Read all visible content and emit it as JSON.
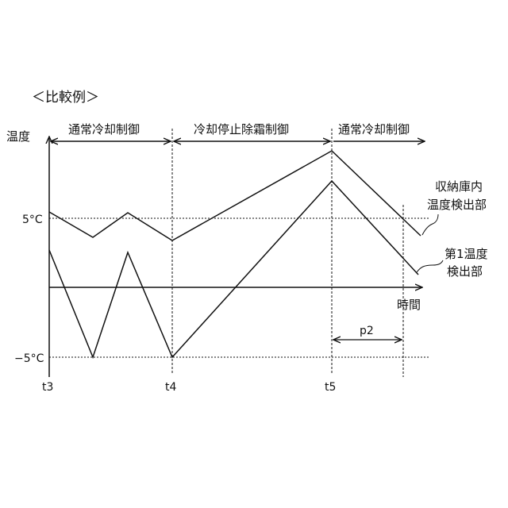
{
  "title": "＜比較例＞",
  "y_axis_label": "温度",
  "x_axis_label": "時間",
  "y_ticks": {
    "upper": "5°C",
    "lower": "−5°C"
  },
  "time_marks": [
    "t3",
    "t4",
    "t5"
  ],
  "phases": [
    {
      "label": "通常冷却制御"
    },
    {
      "label": "冷却停止除霜制御"
    },
    {
      "label": "通常冷却制御"
    }
  ],
  "interval_label": "p2",
  "series": [
    {
      "name_line1": "収納庫内",
      "name_line2": "温度検出部"
    },
    {
      "name_line1": "第1温度",
      "name_line2": "検出部"
    }
  ],
  "colors": {
    "line": "#111111",
    "background": "#ffffff"
  }
}
